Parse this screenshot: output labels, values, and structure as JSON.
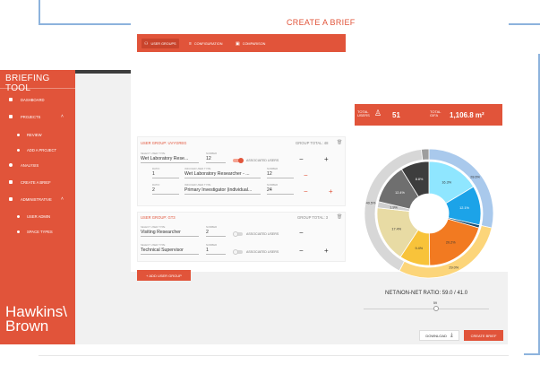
{
  "sidebar": {
    "title": "BRIEFING TOOL",
    "items": [
      {
        "label": "DASHBOARD"
      },
      {
        "label": "PROJECTS"
      },
      {
        "label": "REVIEW"
      },
      {
        "label": "ADD A PROJECT"
      },
      {
        "label": "ANALYSIS"
      },
      {
        "label": "CREATE A BRIEF"
      },
      {
        "label": "ADMINISTRATIVE"
      },
      {
        "label": "USER ADMIN"
      },
      {
        "label": "SPACE TYPES"
      }
    ],
    "logo_line1": "Hawkins\\",
    "logo_line2": "Brown"
  },
  "page": {
    "title": "CREATE A BRIEF"
  },
  "tabs": [
    {
      "label": "USER GROUPS",
      "active": true
    },
    {
      "label": "CONFIGURATION"
    },
    {
      "label": "COMPARISON"
    }
  ],
  "stats": {
    "users_label": "TOTAL USERS",
    "users_value": "51",
    "gifa_label": "TOTAL GIFA",
    "gifa_value": "1,106.8 m²"
  },
  "group1": {
    "title": "USER GROUP: uvygreg",
    "total": "GROUP TOTAL: 48",
    "user_type_label": "SELECT USER TYPE",
    "user_type": "Wet Laboratory Rese...",
    "number_label": "NUMBER",
    "number": "12",
    "assoc": "ASSOCIATED USERS",
    "sub": [
      {
        "ratio_label": "RATIO",
        "ratio": "1",
        "type_label": "INDUCED USER TYPE",
        "type": "Wet Laboratory Researcher - ...",
        "num_label": "NUMBER",
        "num": "12"
      },
      {
        "ratio_label": "RATIO",
        "ratio": "2",
        "type_label": "INDUCED USER TYPE",
        "type": "Primary Investigator (individual...",
        "num_label": "NUMBER",
        "num": "24"
      }
    ]
  },
  "group2": {
    "title": "USER GROUP: gt3",
    "total": "GROUP TOTAL: 3",
    "rows": [
      {
        "type_label": "SELECT USER TYPE",
        "type": "Visiting Researcher",
        "num_label": "NUMBER",
        "num": "2",
        "assoc": "ASSOCIATED USERS"
      },
      {
        "type_label": "SELECT USER TYPE",
        "type": "Technical Supervisor",
        "num_label": "NUMBER",
        "num": "1",
        "assoc": "ASSOCIATED USERS"
      }
    ]
  },
  "buttons": {
    "add_group": "+ ADD USER GROUP",
    "download": "DOWNLOAD",
    "create": "CREATE BRIEF"
  },
  "ratio_text": "NET/NON-NET RATIO: 59.0 / 41.0",
  "slider_value": "59",
  "chart_data": {
    "type": "pie",
    "outer": [
      {
        "value": 28.6,
        "color": "#a9c9ec",
        "label": "28.6%"
      },
      {
        "value": 29.0,
        "color": "#fcd57a",
        "label": "29.0%"
      },
      {
        "value": 40.5,
        "color": "#d7d7d7",
        "label": "40.5%"
      },
      {
        "value": 1.9,
        "color": "#9e9e9e",
        "label": ""
      }
    ],
    "inner": [
      {
        "value": 16.3,
        "color": "#8fe6ff",
        "label": "16.3%"
      },
      {
        "value": 12.1,
        "color": "#1ca3e8",
        "label": "12.1%"
      },
      {
        "value": 0.9,
        "color": "#1b4f72",
        "label": ""
      },
      {
        "value": 20.2,
        "color": "#f27a21",
        "label": "20.2%"
      },
      {
        "value": 9.4,
        "color": "#f8c33a",
        "label": "9.4%"
      },
      {
        "value": 17.4,
        "color": "#e8dba4",
        "label": "17.4%"
      },
      {
        "value": 1.9,
        "color": "#cfcfcf",
        "label": "1.9%"
      },
      {
        "value": 12.4,
        "color": "#6f6f6f",
        "label": "12.4%"
      },
      {
        "value": 8.8,
        "color": "#3d3d3d",
        "label": "8.8%"
      }
    ]
  }
}
